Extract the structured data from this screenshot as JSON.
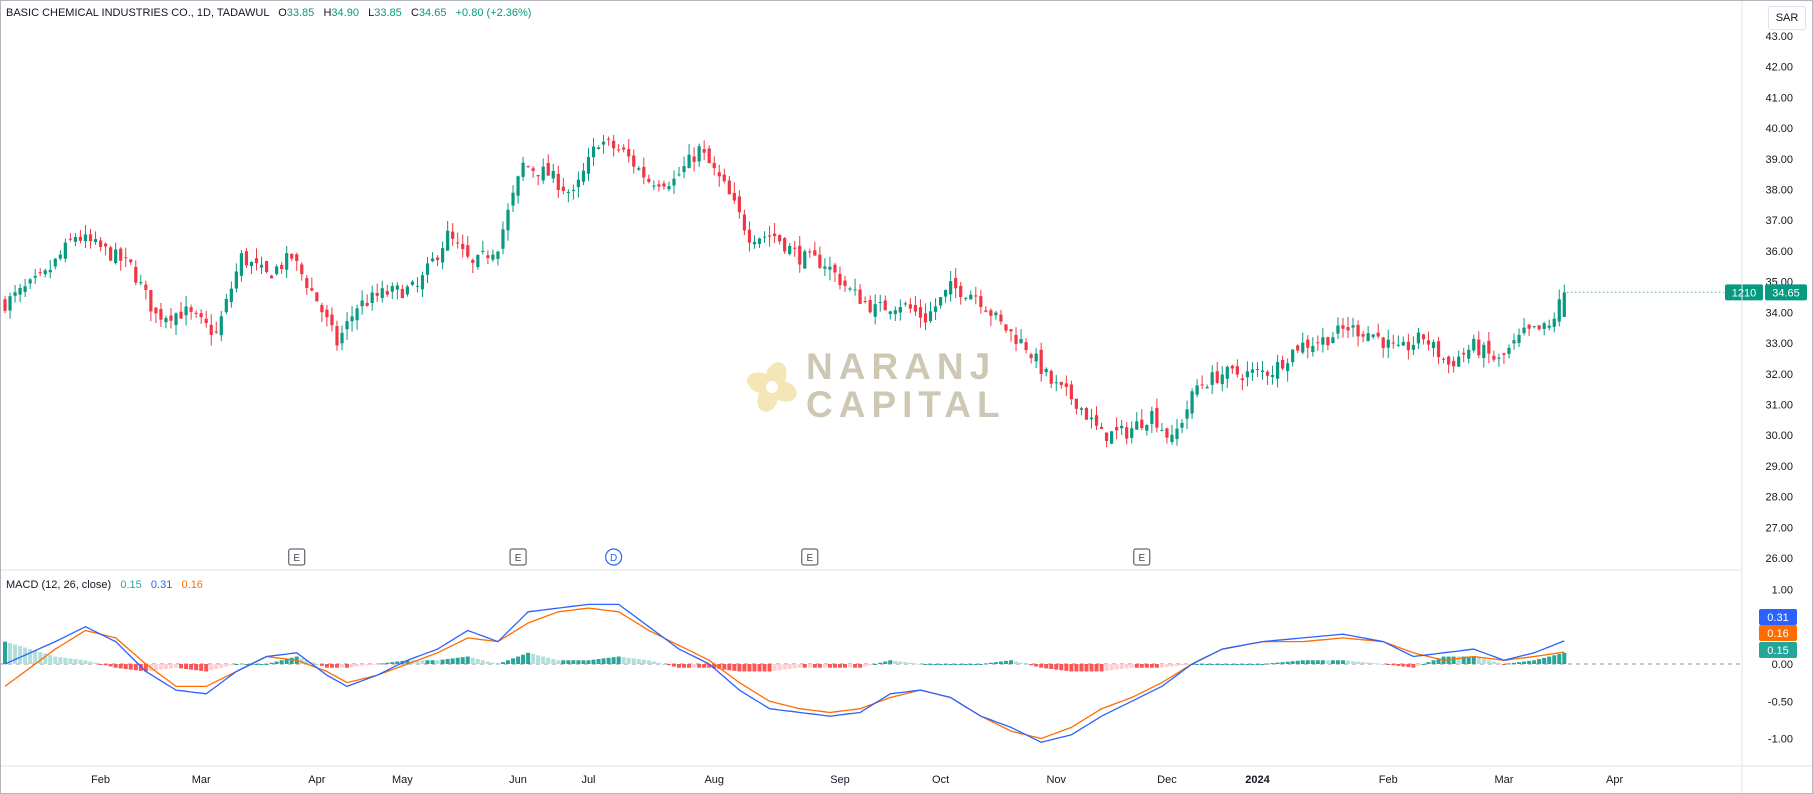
{
  "header": {
    "symbol": "BASIC CHEMICAL INDUSTRIES CO., 1D, TADAWUL",
    "open_label": "O",
    "open": "33.85",
    "high_label": "H",
    "high": "34.90",
    "low_label": "L",
    "low": "33.85",
    "close_label": "C",
    "close": "34.65",
    "change": "+0.80 (+2.36%)"
  },
  "currency": "SAR",
  "watermark": {
    "line1": "NARANJ",
    "line2": "CAPITAL"
  },
  "price_axis": {
    "ticks": [
      "43.00",
      "42.00",
      "41.00",
      "40.00",
      "39.00",
      "38.00",
      "37.00",
      "36.00",
      "35.00",
      "34.00",
      "33.00",
      "32.00",
      "31.00",
      "30.00",
      "29.00",
      "28.00",
      "27.00",
      "26.00"
    ],
    "last_price_label": "34.65",
    "last_price_code": "1210"
  },
  "time_axis": {
    "labels": [
      "Feb",
      "Mar",
      "Apr",
      "May",
      "Jun",
      "Jul",
      "Aug",
      "Sep",
      "Oct",
      "Nov",
      "Dec",
      "2024",
      "Feb",
      "Mar",
      "Apr"
    ]
  },
  "events": [
    "E",
    "E",
    "D",
    "E",
    "E"
  ],
  "macd": {
    "title": "MACD (12, 26, close)",
    "hist_value": "0.15",
    "macd_value": "0.31",
    "signal_value": "0.16",
    "ticks": [
      "1.00",
      "0.50",
      "0.00",
      "-0.50",
      "-1.00"
    ],
    "badges": [
      "0.31",
      "0.16",
      "0.15"
    ]
  },
  "colors": {
    "up": "#089981",
    "down": "#f23645",
    "macd": "#2962ff",
    "signal": "#ff6d00",
    "hist_up_strong": "#26a69a",
    "hist_up_weak": "#b2dfdb",
    "hist_down_strong": "#ff5252",
    "hist_down_weak": "#ffcdd2"
  },
  "chart_data": {
    "type": "candlestick",
    "title": "BASIC CHEMICAL INDUSTRIES CO., 1D, TADAWUL",
    "ylim": [
      26,
      43
    ],
    "grid": false,
    "close_anchors": [
      [
        0,
        34.3
      ],
      [
        8,
        35.2
      ],
      [
        14,
        36.5
      ],
      [
        20,
        36.0
      ],
      [
        25,
        35.5
      ],
      [
        30,
        33.9
      ],
      [
        36,
        34.0
      ],
      [
        42,
        33.3
      ],
      [
        47,
        35.8
      ],
      [
        52,
        35.2
      ],
      [
        57,
        35.8
      ],
      [
        62,
        34.4
      ],
      [
        66,
        33.0
      ],
      [
        70,
        34.2
      ],
      [
        75,
        34.6
      ],
      [
        82,
        34.8
      ],
      [
        88,
        36.5
      ],
      [
        93,
        35.5
      ],
      [
        98,
        36.2
      ],
      [
        103,
        38.8
      ],
      [
        108,
        38.5
      ],
      [
        113,
        37.8
      ],
      [
        118,
        39.6
      ],
      [
        123,
        39.2
      ],
      [
        128,
        38.3
      ],
      [
        133,
        38.3
      ],
      [
        138,
        39.3
      ],
      [
        143,
        38.1
      ],
      [
        148,
        36.5
      ],
      [
        153,
        36.5
      ],
      [
        158,
        35.8
      ],
      [
        163,
        35.6
      ],
      [
        168,
        34.7
      ],
      [
        173,
        34.1
      ],
      [
        178,
        34.3
      ],
      [
        183,
        33.8
      ],
      [
        188,
        34.8
      ],
      [
        193,
        34.6
      ],
      [
        198,
        33.6
      ],
      [
        203,
        32.9
      ],
      [
        208,
        31.7
      ],
      [
        213,
        31.1
      ],
      [
        218,
        30.0
      ],
      [
        223,
        30.1
      ],
      [
        228,
        30.7
      ],
      [
        232,
        29.8
      ],
      [
        237,
        31.6
      ],
      [
        242,
        32.0
      ],
      [
        247,
        32.0
      ],
      [
        252,
        32.1
      ],
      [
        257,
        32.9
      ],
      [
        262,
        33.1
      ],
      [
        267,
        33.5
      ],
      [
        272,
        33.3
      ],
      [
        277,
        32.7
      ],
      [
        282,
        33.2
      ],
      [
        287,
        32.3
      ],
      [
        292,
        32.9
      ],
      [
        297,
        32.4
      ],
      [
        302,
        33.3
      ],
      [
        307,
        33.5
      ],
      [
        310,
        34.65
      ]
    ],
    "macd_anchors": [
      [
        0,
        0.0
      ],
      [
        10,
        0.3
      ],
      [
        16,
        0.5
      ],
      [
        22,
        0.3
      ],
      [
        28,
        -0.1
      ],
      [
        34,
        -0.35
      ],
      [
        40,
        -0.4
      ],
      [
        46,
        -0.1
      ],
      [
        52,
        0.1
      ],
      [
        58,
        0.15
      ],
      [
        64,
        -0.15
      ],
      [
        68,
        -0.3
      ],
      [
        74,
        -0.15
      ],
      [
        80,
        0.05
      ],
      [
        86,
        0.2
      ],
      [
        92,
        0.45
      ],
      [
        98,
        0.3
      ],
      [
        104,
        0.7
      ],
      [
        110,
        0.75
      ],
      [
        116,
        0.8
      ],
      [
        122,
        0.8
      ],
      [
        128,
        0.5
      ],
      [
        134,
        0.2
      ],
      [
        140,
        0.0
      ],
      [
        146,
        -0.35
      ],
      [
        152,
        -0.6
      ],
      [
        158,
        -0.65
      ],
      [
        164,
        -0.7
      ],
      [
        170,
        -0.65
      ],
      [
        176,
        -0.4
      ],
      [
        182,
        -0.35
      ],
      [
        188,
        -0.45
      ],
      [
        194,
        -0.7
      ],
      [
        200,
        -0.85
      ],
      [
        206,
        -1.05
      ],
      [
        212,
        -0.95
      ],
      [
        218,
        -0.7
      ],
      [
        224,
        -0.5
      ],
      [
        230,
        -0.3
      ],
      [
        236,
        0.0
      ],
      [
        242,
        0.2
      ],
      [
        250,
        0.3
      ],
      [
        258,
        0.35
      ],
      [
        266,
        0.4
      ],
      [
        274,
        0.3
      ],
      [
        280,
        0.1
      ],
      [
        286,
        0.15
      ],
      [
        292,
        0.2
      ],
      [
        298,
        0.05
      ],
      [
        304,
        0.15
      ],
      [
        310,
        0.31
      ]
    ],
    "signal_anchors": [
      [
        0,
        -0.3
      ],
      [
        10,
        0.2
      ],
      [
        16,
        0.45
      ],
      [
        22,
        0.35
      ],
      [
        28,
        0.0
      ],
      [
        34,
        -0.3
      ],
      [
        40,
        -0.3
      ],
      [
        46,
        -0.1
      ],
      [
        52,
        0.1
      ],
      [
        58,
        0.05
      ],
      [
        64,
        -0.1
      ],
      [
        68,
        -0.25
      ],
      [
        74,
        -0.15
      ],
      [
        80,
        0.0
      ],
      [
        86,
        0.15
      ],
      [
        92,
        0.35
      ],
      [
        98,
        0.3
      ],
      [
        104,
        0.55
      ],
      [
        110,
        0.7
      ],
      [
        116,
        0.75
      ],
      [
        122,
        0.7
      ],
      [
        128,
        0.45
      ],
      [
        134,
        0.25
      ],
      [
        140,
        0.05
      ],
      [
        146,
        -0.25
      ],
      [
        152,
        -0.5
      ],
      [
        158,
        -0.6
      ],
      [
        164,
        -0.65
      ],
      [
        170,
        -0.6
      ],
      [
        176,
        -0.45
      ],
      [
        182,
        -0.35
      ],
      [
        188,
        -0.45
      ],
      [
        194,
        -0.7
      ],
      [
        200,
        -0.9
      ],
      [
        206,
        -1.0
      ],
      [
        212,
        -0.85
      ],
      [
        218,
        -0.6
      ],
      [
        224,
        -0.45
      ],
      [
        230,
        -0.25
      ],
      [
        236,
        0.0
      ],
      [
        242,
        0.2
      ],
      [
        250,
        0.3
      ],
      [
        258,
        0.3
      ],
      [
        266,
        0.35
      ],
      [
        274,
        0.3
      ],
      [
        280,
        0.15
      ],
      [
        286,
        0.05
      ],
      [
        292,
        0.1
      ],
      [
        298,
        0.05
      ],
      [
        304,
        0.1
      ],
      [
        310,
        0.16
      ]
    ],
    "macd_ylim": [
      -1.1,
      1.1
    ],
    "event_positions": [
      [
        58,
        "E"
      ],
      [
        102,
        "E"
      ],
      [
        121,
        "D"
      ],
      [
        160,
        "E"
      ],
      [
        226,
        "E"
      ]
    ],
    "month_positions": [
      [
        19,
        "Feb"
      ],
      [
        39,
        "Mar"
      ],
      [
        62,
        "Apr"
      ],
      [
        79,
        "May"
      ],
      [
        102,
        "Jun"
      ],
      [
        116,
        "Jul"
      ],
      [
        141,
        "Aug"
      ],
      [
        166,
        "Sep"
      ],
      [
        186,
        "Oct"
      ],
      [
        209,
        "Nov"
      ],
      [
        231,
        "Dec"
      ],
      [
        249,
        "2024"
      ],
      [
        275,
        "Feb"
      ],
      [
        298,
        "Mar"
      ],
      [
        320,
        "Apr"
      ]
    ],
    "last_bar": {
      "open": 33.85,
      "high": 34.9,
      "low": 33.85,
      "close": 34.65
    }
  }
}
